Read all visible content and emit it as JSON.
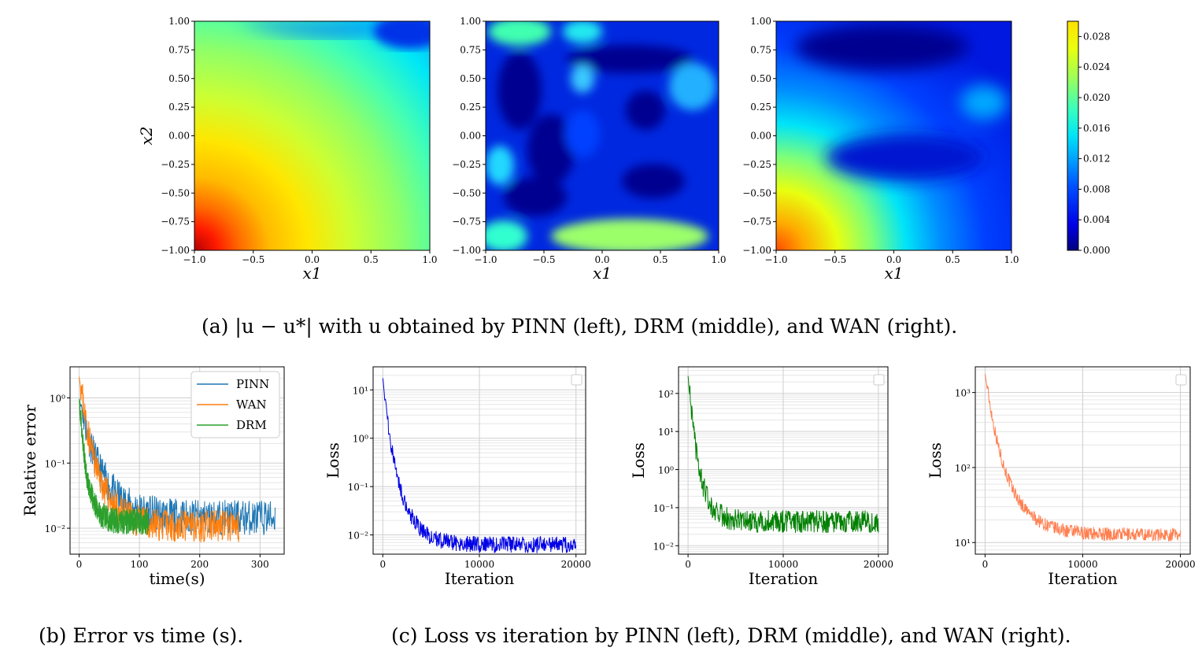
{
  "captions": {
    "a": "(a) |u − u*| with u obtained by PINN (left), DRM (middle), and WAN (right).",
    "b": "(b) Error vs time (s).",
    "c": "(c) Loss vs iteration by PINN (left), DRM (middle), and WAN (right)."
  },
  "colors": {
    "pinn": "#1f77b4",
    "wan": "#ff7f0e",
    "drm": "#2ca02c",
    "loss_pinn": "#0000e6",
    "loss_drm": "#008000",
    "loss_wan": "#ff7f50"
  },
  "chart_data": [
    {
      "type": "heatmap",
      "panel": "pinn-error",
      "xlabel": "x1",
      "ylabel": "x2",
      "xlim": [
        -1.0,
        1.0
      ],
      "ylim": [
        -1.0,
        1.0
      ],
      "xticks": [
        "−1.0",
        "−0.5",
        "0.0",
        "0.5",
        "1.0"
      ],
      "yticks": [
        "−1.00",
        "−0.75",
        "−0.50",
        "−0.25",
        "0.00",
        "0.25",
        "0.50",
        "0.75",
        "1.00"
      ],
      "value_range": [
        0.0,
        0.03
      ],
      "description_values": {
        "min_near": [
          1.0,
          1.0
        ],
        "max_near": [
          -1.0,
          -1.0
        ]
      }
    },
    {
      "type": "heatmap",
      "panel": "drm-error",
      "xlabel": "x1",
      "ylabel": "",
      "xlim": [
        -1.0,
        1.0
      ],
      "ylim": [
        -1.0,
        1.0
      ],
      "xticks": [
        "−1.0",
        "−0.5",
        "0.0",
        "0.5",
        "1.0"
      ],
      "yticks": [
        "−1.00",
        "−0.75",
        "−0.50",
        "−0.25",
        "0.00",
        "0.25",
        "0.50",
        "0.75",
        "1.00"
      ],
      "value_range": [
        0.0,
        0.03
      ]
    },
    {
      "type": "heatmap",
      "panel": "wan-error",
      "xlabel": "x1",
      "ylabel": "",
      "xlim": [
        -1.0,
        1.0
      ],
      "ylim": [
        -1.0,
        1.0
      ],
      "xticks": [
        "−1.0",
        "−0.5",
        "0.0",
        "0.5",
        "1.0"
      ],
      "yticks": [
        "−1.00",
        "−0.75",
        "−0.50",
        "−0.25",
        "0.00",
        "0.25",
        "0.50",
        "0.75",
        "1.00"
      ],
      "value_range": [
        0.0,
        0.03
      ]
    },
    {
      "type": "colorbar",
      "ticks": [
        "0.000",
        "0.004",
        "0.008",
        "0.012",
        "0.016",
        "0.020",
        "0.024",
        "0.028"
      ],
      "range": [
        0.0,
        0.03
      ]
    },
    {
      "type": "line",
      "panel": "error-vs-time",
      "xlabel": "time(s)",
      "ylabel": "Relative error",
      "yscale": "log",
      "xlim": [
        -15,
        340
      ],
      "ylim": [
        0.004,
        3.0
      ],
      "xticks": [
        "0",
        "100",
        "200",
        "300"
      ],
      "yticks": [
        "10⁰",
        "10⁻¹",
        "10⁻²"
      ],
      "legend": "top-right",
      "series": [
        {
          "name": "PINN",
          "t_end": 325,
          "start": 1.0,
          "end": 0.012
        },
        {
          "name": "WAN",
          "t_end": 265,
          "start": 2.2,
          "end": 0.009
        },
        {
          "name": "DRM",
          "t_end": 115,
          "start": 1.0,
          "end": 0.011
        }
      ]
    },
    {
      "type": "line",
      "panel": "loss-pinn",
      "xlabel": "Iteration",
      "ylabel": "Loss",
      "yscale": "log",
      "xlim": [
        -1000,
        21000
      ],
      "ylim": [
        0.004,
        30
      ],
      "xticks": [
        "0",
        "10000",
        "20000"
      ],
      "yticks": [
        "10¹",
        "10⁰",
        "10⁻¹",
        "10⁻²"
      ],
      "series": [
        {
          "start": 18,
          "end": 0.0055
        }
      ]
    },
    {
      "type": "line",
      "panel": "loss-drm",
      "xlabel": "Iteration",
      "ylabel": "Loss",
      "yscale": "log",
      "xlim": [
        -1000,
        21000
      ],
      "ylim": [
        0.006,
        500
      ],
      "xticks": [
        "0",
        "10000",
        "20000"
      ],
      "yticks": [
        "10²",
        "10¹",
        "10⁰",
        "10⁻¹",
        "10⁻²"
      ],
      "series": [
        {
          "start": 300,
          "end": 0.035
        }
      ]
    },
    {
      "type": "line",
      "panel": "loss-wan",
      "xlabel": "Iteration",
      "ylabel": "Loss",
      "yscale": "log",
      "xlim": [
        -1000,
        21000
      ],
      "ylim": [
        7,
        2200
      ],
      "xticks": [
        "0",
        "10000",
        "20000"
      ],
      "yticks": [
        "10³",
        "10²",
        "10¹"
      ],
      "series": [
        {
          "start": 1800,
          "end": 12
        }
      ]
    }
  ]
}
